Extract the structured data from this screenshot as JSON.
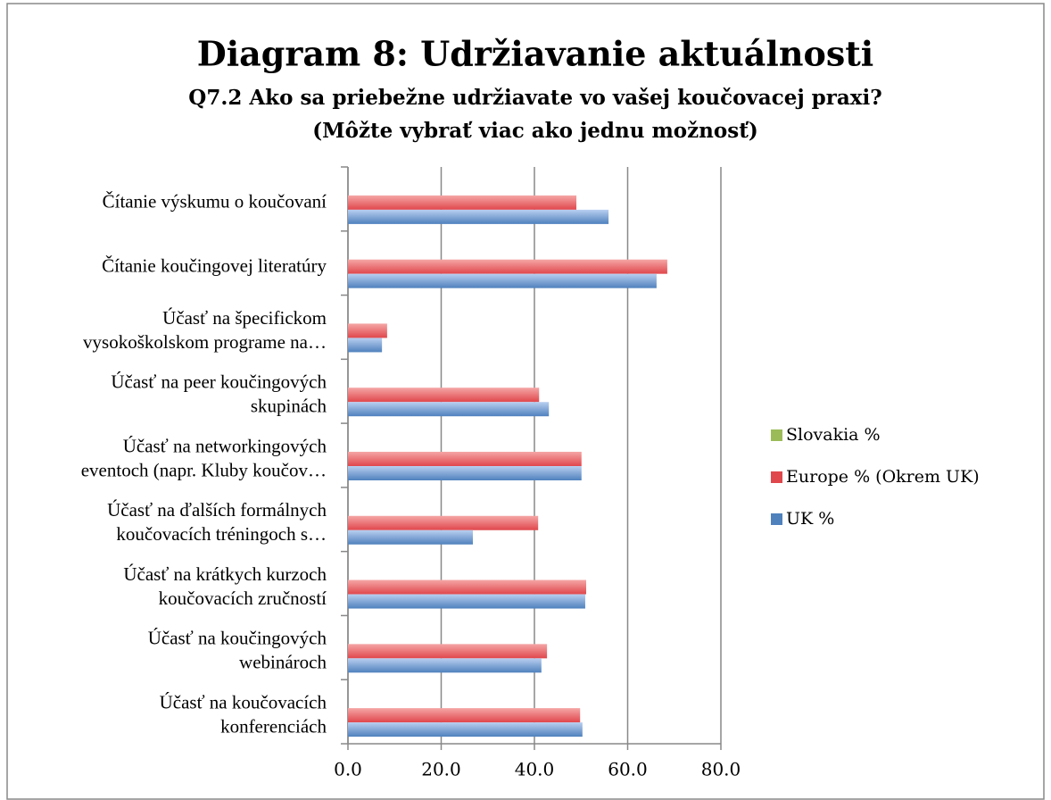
{
  "chart_data": {
    "type": "bar",
    "orientation": "horizontal",
    "title": "Diagram 8: Udržiavanie aktuálnosti",
    "subtitle": [
      "Q7.2 Ako sa priebežne udržiavate vo vašej koučovacej praxi?",
      "(Môžte vybrať viac ako jednu možnosť)"
    ],
    "categories": [
      [
        "Čítanie výskumu o koučovaní"
      ],
      [
        "Čítanie koučingovej literatúry"
      ],
      [
        "Účasť na špecifickom",
        "vysokoškolskom programe na…"
      ],
      [
        "Účasť na peer koučingových",
        "skupinách"
      ],
      [
        "Účasť na networkingových",
        "eventoch (napr. Kluby koučov…"
      ],
      [
        "Účasť na ďalších formálnych",
        "koučovacích tréningoch s…"
      ],
      [
        "Účasť na krátkych kurzoch",
        "koučovacích zručností"
      ],
      [
        "Účasť na koučingových",
        "webinároch"
      ],
      [
        "Účasť na koučovacích",
        "konferenciách"
      ]
    ],
    "series": [
      {
        "name": "Slovakia %",
        "color": "#9bbb59",
        "values": [
          null,
          null,
          null,
          null,
          null,
          null,
          null,
          null,
          null
        ]
      },
      {
        "name": "Europe % (Okrem UK)",
        "color": "#e0474c",
        "values": [
          49.0,
          68.5,
          8.4,
          41.0,
          50.1,
          40.8,
          51.1,
          42.7,
          49.8
        ]
      },
      {
        "name": "UK %",
        "color": "#4f81bd",
        "values": [
          55.9,
          66.2,
          7.3,
          43.1,
          50.1,
          26.8,
          50.9,
          41.5,
          50.3
        ]
      }
    ],
    "xlim": [
      0,
      80
    ],
    "xticks": [
      {
        "value": 0,
        "label": "0.0"
      },
      {
        "value": 20,
        "label": "20.0"
      },
      {
        "value": 40,
        "label": "40.0"
      },
      {
        "value": 60,
        "label": "60.0"
      },
      {
        "value": 80,
        "label": "80.0"
      }
    ],
    "grid": true,
    "legend": "right"
  }
}
